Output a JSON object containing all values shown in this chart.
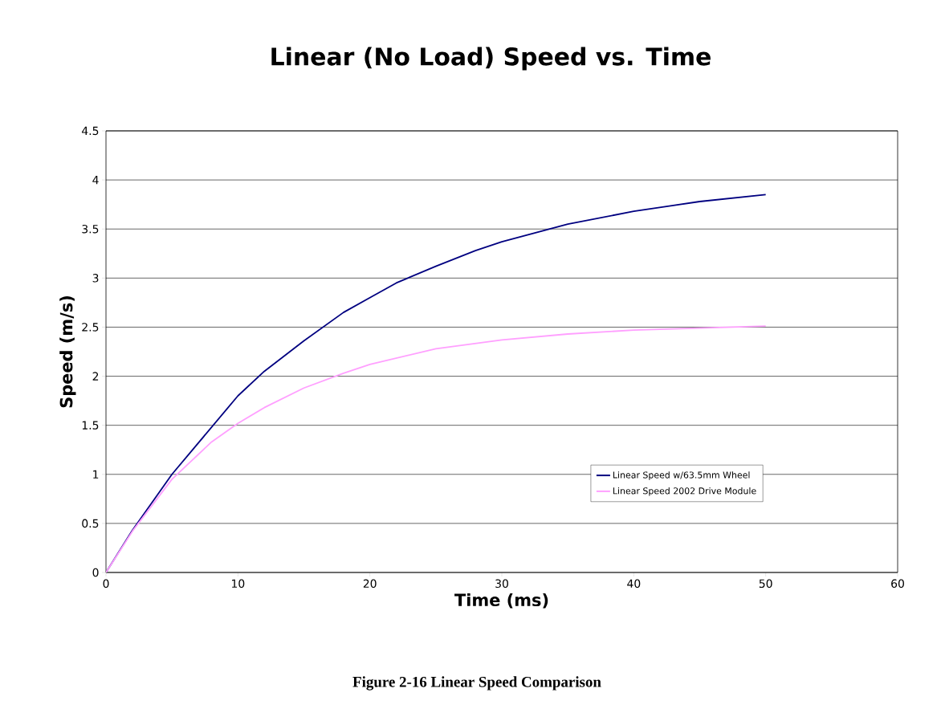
{
  "chart_data": {
    "type": "line",
    "title": "Linear (No Load) Speed vs. Time",
    "xlabel": "Time (ms)",
    "ylabel": "Speed (m/s)",
    "annotations": [
      "Figure 2-16 Linear Speed Comparison"
    ],
    "series": [
      {
        "name": "Linear Speed w/63.5mm Wheel",
        "color": "#000080",
        "x": [
          0,
          2,
          5,
          10,
          12,
          15,
          18,
          20,
          22,
          25,
          28,
          30,
          35,
          40,
          45,
          50
        ],
        "values": [
          0,
          0.43,
          1.0,
          1.8,
          2.05,
          2.36,
          2.65,
          2.8,
          2.95,
          3.12,
          3.28,
          3.37,
          3.55,
          3.68,
          3.78,
          3.85
        ]
      },
      {
        "name": "Linear Speed 2002 Drive Module",
        "color": "#ffa0ff",
        "x": [
          0,
          2,
          5,
          8,
          10,
          12,
          15,
          18,
          20,
          25,
          30,
          35,
          40,
          45,
          50
        ],
        "values": [
          0,
          0.42,
          0.95,
          1.33,
          1.52,
          1.68,
          1.88,
          2.03,
          2.12,
          2.28,
          2.37,
          2.43,
          2.47,
          2.49,
          2.51
        ]
      }
    ],
    "xlim": [
      0,
      60
    ],
    "ylim": [
      0,
      4.5
    ],
    "xticks": [
      0,
      10,
      20,
      30,
      40,
      50,
      60
    ],
    "yticks": [
      0,
      0.5,
      1,
      1.5,
      2,
      2.5,
      3,
      3.5,
      4,
      4.5
    ],
    "grid": "y",
    "legend": "right",
    "marker": "none",
    "line_style": "solid"
  }
}
